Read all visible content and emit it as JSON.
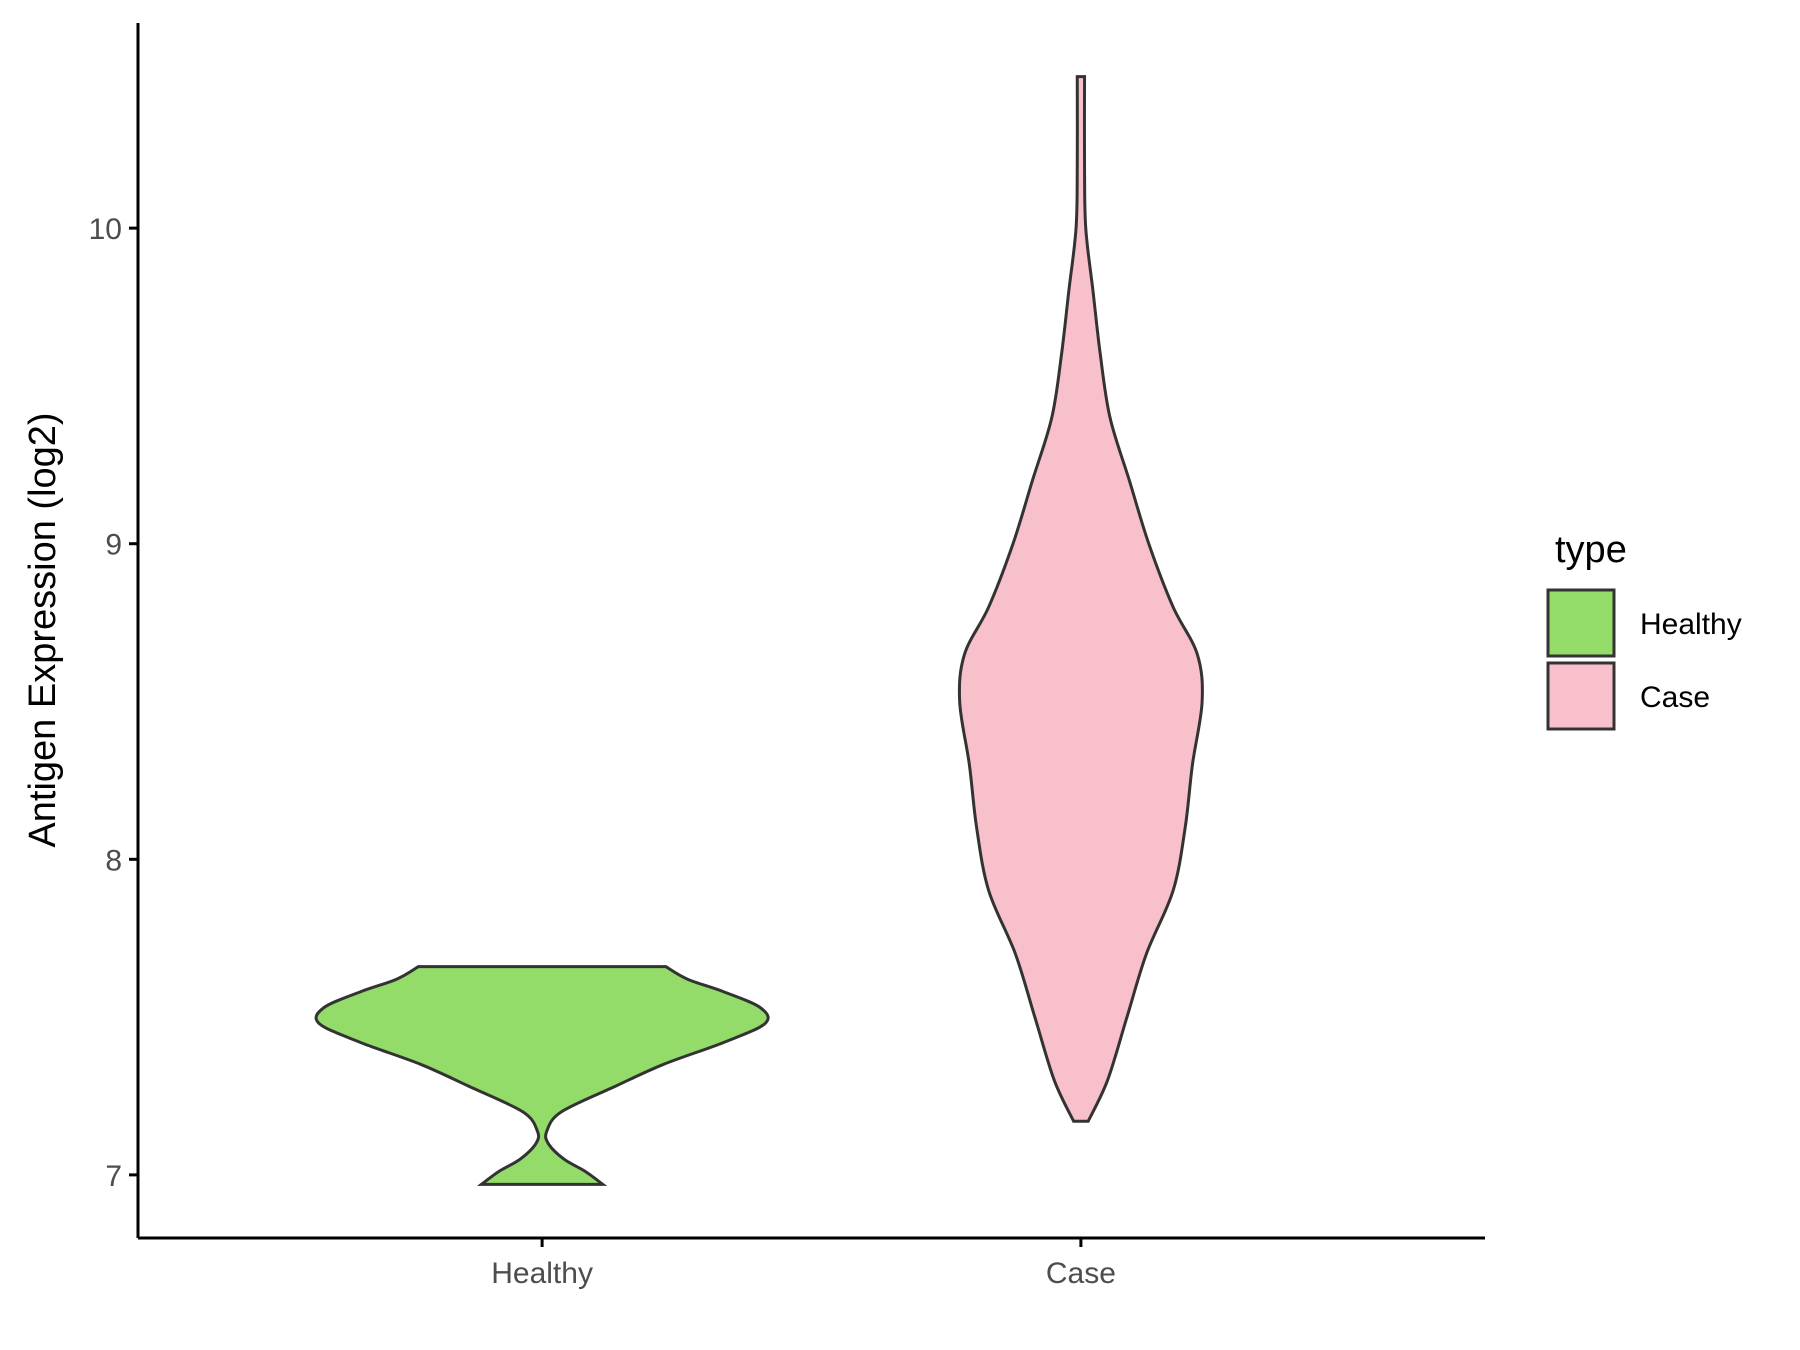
{
  "chart_data": {
    "type": "violin",
    "title": "",
    "xlabel": "",
    "ylabel": "Antigen Expression (log2)",
    "ylim": [
      6.8,
      10.65
    ],
    "yticks": [
      7,
      8,
      9,
      10
    ],
    "categories": [
      "Healthy",
      "Case"
    ],
    "legend": {
      "title": "type",
      "placement": "right",
      "entries": [
        {
          "label": "Healthy",
          "color": "#93dc6a"
        },
        {
          "label": "Case",
          "color": "#f8c0cb"
        }
      ]
    },
    "series": [
      {
        "name": "Healthy",
        "color": "#93dc6a",
        "min": 6.97,
        "max": 7.66,
        "profile": [
          [
            6.97,
            0.25
          ],
          [
            7.01,
            0.18
          ],
          [
            7.05,
            0.09
          ],
          [
            7.1,
            0.025
          ],
          [
            7.14,
            0.02
          ],
          [
            7.2,
            0.08
          ],
          [
            7.28,
            0.3
          ],
          [
            7.35,
            0.5
          ],
          [
            7.42,
            0.75
          ],
          [
            7.48,
            0.92
          ],
          [
            7.53,
            0.9
          ],
          [
            7.58,
            0.75
          ],
          [
            7.62,
            0.6
          ],
          [
            7.66,
            0.51
          ]
        ]
      },
      {
        "name": "Case",
        "color": "#f8c0cb",
        "min": 7.17,
        "max": 10.48,
        "profile": [
          [
            7.17,
            0.03
          ],
          [
            7.3,
            0.11
          ],
          [
            7.5,
            0.19
          ],
          [
            7.7,
            0.27
          ],
          [
            7.9,
            0.38
          ],
          [
            8.1,
            0.43
          ],
          [
            8.3,
            0.46
          ],
          [
            8.5,
            0.5
          ],
          [
            8.65,
            0.48
          ],
          [
            8.8,
            0.38
          ],
          [
            9.0,
            0.28
          ],
          [
            9.2,
            0.2
          ],
          [
            9.4,
            0.12
          ],
          [
            9.6,
            0.08
          ],
          [
            9.8,
            0.05
          ],
          [
            10.0,
            0.02
          ],
          [
            10.2,
            0.015
          ],
          [
            10.48,
            0.015
          ]
        ]
      }
    ]
  }
}
